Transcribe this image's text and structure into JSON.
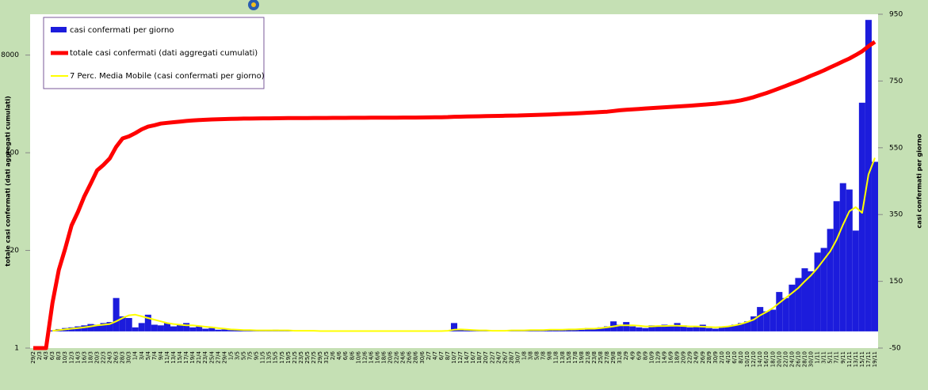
{
  "chart_data": {
    "type": "bar",
    "y_label": "totale casi confermati (dati aggregati cumulati)",
    "y2_label": "casi confermati per giorno",
    "categories": [
      "29/2",
      "2/3",
      "4/3",
      "6/3",
      "8/3",
      "10/3",
      "12/3",
      "14/3",
      "16/3",
      "18/3",
      "20/3",
      "22/3",
      "24/3",
      "26/3",
      "28/3",
      "30/3",
      "1/4",
      "3/4",
      "5/4",
      "7/4",
      "9/4",
      "11/4",
      "13/4",
      "15/4",
      "17/4",
      "19/4",
      "21/4",
      "23/4",
      "25/4",
      "27/4",
      "29/4",
      "1/5",
      "3/5",
      "5/5",
      "7/5",
      "9/5",
      "11/5",
      "13/5",
      "15/5",
      "17/5",
      "19/5",
      "21/5",
      "23/5",
      "25/5",
      "27/5",
      "29/5",
      "31/5",
      "2/6",
      "4/6",
      "6/6",
      "8/6",
      "10/6",
      "12/6",
      "14/6",
      "16/6",
      "18/6",
      "20/6",
      "22/6",
      "24/6",
      "26/6",
      "28/6",
      "30/6",
      "2/7",
      "4/7",
      "6/7",
      "8/7",
      "10/7",
      "12/7",
      "14/7",
      "16/7",
      "18/7",
      "20/7",
      "22/7",
      "24/7",
      "26/7",
      "28/7",
      "30/7",
      "1/8",
      "3/8",
      "5/8",
      "7/8",
      "9/8",
      "11/8",
      "13/8",
      "15/8",
      "17/8",
      "19/8",
      "21/8",
      "23/8",
      "25/8",
      "27/8",
      "29/8",
      "31/8",
      "2/9",
      "4/9",
      "6/9",
      "8/9",
      "10/9",
      "12/9",
      "14/9",
      "16/9",
      "18/9",
      "20/9",
      "22/9",
      "24/9",
      "26/9",
      "28/9",
      "30/9",
      "2/10",
      "4/10",
      "6/10",
      "8/10",
      "10/10",
      "12/10",
      "14/10",
      "16/10",
      "18/10",
      "20/10",
      "22/10",
      "24/10",
      "26/10",
      "28/10",
      "30/10",
      "1/11",
      "3/11",
      "5/11",
      "7/11",
      "9/11",
      "11/11",
      "13/11",
      "15/11",
      "17/11",
      "19/11"
    ],
    "series": [
      {
        "name": "casi confermati per giorno",
        "color": "#1c1cdc",
        "type": "bar",
        "axis": "y2",
        "values": [
          0,
          0,
          0,
          3,
          7,
          10,
          12,
          15,
          18,
          22,
          20,
          25,
          28,
          100,
          45,
          40,
          12,
          25,
          50,
          20,
          18,
          25,
          15,
          20,
          25,
          12,
          15,
          8,
          10,
          5,
          6,
          4,
          5,
          3,
          2,
          4,
          2,
          3,
          5,
          2,
          3,
          2,
          1,
          2,
          1,
          1,
          2,
          1,
          1,
          1,
          0,
          1,
          1,
          1,
          0,
          1,
          1,
          1,
          0,
          1,
          1,
          2,
          1,
          1,
          1,
          2,
          25,
          4,
          3,
          2,
          2,
          3,
          1,
          2,
          3,
          2,
          4,
          3,
          4,
          5,
          3,
          6,
          5,
          4,
          6,
          8,
          5,
          10,
          7,
          12,
          15,
          30,
          20,
          28,
          15,
          12,
          10,
          18,
          14,
          20,
          15,
          25,
          18,
          12,
          16,
          20,
          10,
          8,
          12,
          15,
          20,
          25,
          30,
          45,
          73,
          60,
          65,
          118,
          100,
          140,
          160,
          189,
          180,
          236,
          250,
          307,
          390,
          444,
          425,
          302,
          685,
          933,
          508
        ]
      },
      {
        "name": "totale casi confermati (dati aggregati cumulati)",
        "color": "#ff0000",
        "type": "line",
        "axis": "y",
        "values": [
          1,
          1,
          1,
          4,
          11,
          21,
          43,
          65,
          105,
          155,
          233,
          275,
          337,
          480,
          620,
          660,
          730,
          820,
          890,
          930,
          980,
          1000,
          1020,
          1040,
          1060,
          1075,
          1090,
          1100,
          1110,
          1120,
          1125,
          1130,
          1135,
          1140,
          1142,
          1145,
          1148,
          1150,
          1152,
          1154,
          1156,
          1158,
          1160,
          1161,
          1162,
          1163,
          1164,
          1165,
          1166,
          1167,
          1168,
          1169,
          1170,
          1171,
          1172,
          1173,
          1174,
          1175,
          1176,
          1177,
          1178,
          1180,
          1182,
          1185,
          1190,
          1195,
          1205,
          1210,
          1215,
          1220,
          1225,
          1230,
          1235,
          1240,
          1245,
          1250,
          1255,
          1262,
          1270,
          1278,
          1286,
          1295,
          1305,
          1315,
          1325,
          1335,
          1350,
          1365,
          1380,
          1395,
          1410,
          1440,
          1470,
          1495,
          1515,
          1535,
          1555,
          1575,
          1595,
          1615,
          1635,
          1655,
          1675,
          1695,
          1720,
          1745,
          1770,
          1800,
          1840,
          1880,
          1930,
          2000,
          2090,
          2200,
          2350,
          2500,
          2680,
          2880,
          3100,
          3350,
          3600,
          3900,
          4250,
          4600,
          5000,
          5500,
          6000,
          6600,
          7200,
          8000,
          9000,
          10500,
          12000
        ]
      },
      {
        "name": "7 Perc. Media Mobile (casi confermati per giorno)",
        "color": "#ffff00",
        "type": "line",
        "axis": "y2",
        "values": [
          null,
          null,
          null,
          2,
          4,
          6,
          8,
          10,
          12,
          15,
          18,
          20,
          22,
          30,
          40,
          48,
          50,
          45,
          40,
          35,
          30,
          25,
          22,
          20,
          18,
          18,
          16,
          14,
          12,
          10,
          8,
          6,
          5,
          4,
          4,
          3,
          3,
          3,
          3,
          3,
          3,
          2,
          2,
          2,
          2,
          1,
          1,
          1,
          1,
          1,
          1,
          1,
          1,
          1,
          1,
          1,
          1,
          1,
          1,
          1,
          1,
          1,
          1,
          1,
          1,
          2,
          5,
          6,
          5,
          4,
          3,
          3,
          2,
          2,
          2,
          3,
          3,
          3,
          4,
          4,
          4,
          5,
          5,
          5,
          6,
          6,
          7,
          8,
          8,
          10,
          12,
          15,
          18,
          18,
          18,
          17,
          15,
          15,
          16,
          16,
          17,
          17,
          16,
          15,
          15,
          14,
          13,
          12,
          13,
          15,
          18,
          22,
          28,
          35,
          48,
          58,
          70,
          85,
          100,
          115,
          130,
          150,
          168,
          190,
          215,
          240,
          275,
          320,
          360,
          372,
          355,
          470,
          520
        ]
      }
    ],
    "ylim": [
      1,
      28000
    ],
    "log_scale": true,
    "yticks": [
      1,
      20,
      400,
      8000
    ],
    "y2lim": [
      -50,
      950
    ],
    "y2ticks": [
      -50,
      150,
      350,
      550,
      750,
      950
    ],
    "legend": "upper left"
  }
}
